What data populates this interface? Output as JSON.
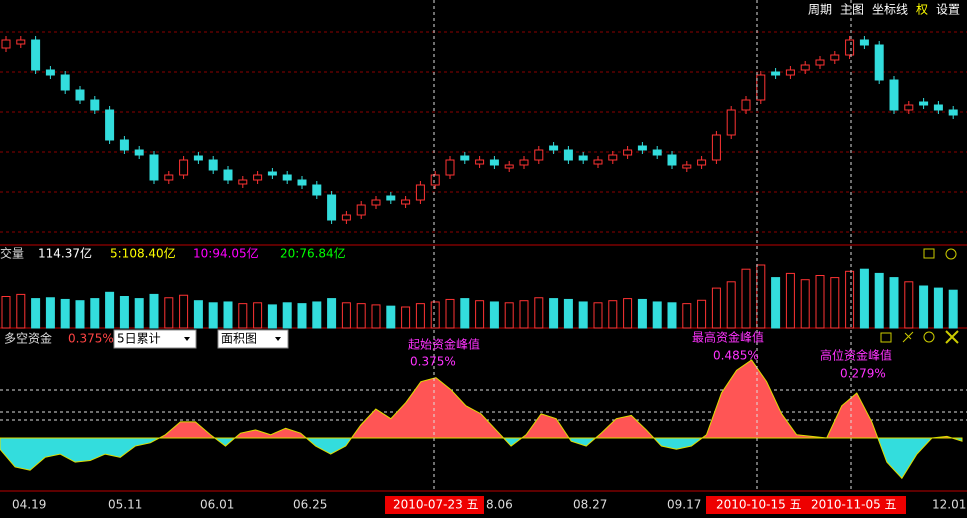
{
  "toolbar": {
    "items": [
      "周期",
      "主图",
      "坐标线",
      "权",
      "设置"
    ]
  },
  "candles": {
    "open": [
      96,
      98,
      100,
      85,
      82.5,
      75,
      70,
      65,
      50,
      45,
      42.5,
      30,
      32.5,
      42,
      40,
      35,
      28,
      30,
      34,
      32.5,
      30,
      27.5,
      22.5,
      10,
      12.5,
      17.5,
      22,
      18,
      20,
      27.5,
      32.5,
      42,
      38,
      40,
      36,
      37.5,
      40,
      47,
      45,
      42,
      38,
      40,
      42.5,
      47,
      45,
      42.5,
      36,
      37.5,
      40,
      52.5,
      65,
      70,
      84,
      82.5,
      85,
      87.5,
      90,
      92.5,
      100,
      97.5,
      80,
      65,
      69,
      67.5,
      65
    ],
    "close": [
      100,
      100,
      85,
      82.5,
      75,
      70,
      65,
      50,
      45,
      42.5,
      30,
      32.5,
      40,
      40,
      35,
      30,
      30,
      32.5,
      32.5,
      30,
      27.5,
      22.5,
      10,
      12.5,
      17.5,
      20,
      20,
      20,
      27.5,
      32.5,
      40,
      40,
      40,
      37.5,
      37.5,
      40,
      45,
      45,
      40,
      40,
      40,
      42.5,
      45,
      45,
      42.5,
      37.5,
      37.5,
      40,
      52.5,
      65,
      70,
      82.5,
      82.5,
      85,
      87.5,
      90,
      92.5,
      100,
      97.5,
      80,
      65,
      67.5,
      67.5,
      65,
      62.5
    ],
    "high": [
      102,
      102,
      102,
      87,
      84.5,
      77,
      72,
      67,
      52,
      47,
      44.5,
      34.5,
      42,
      44,
      42,
      37,
      32,
      34.5,
      36,
      34.5,
      32,
      29.5,
      24.5,
      14.5,
      19.5,
      22,
      24,
      22,
      29.5,
      34.5,
      42,
      44,
      42,
      42,
      39.5,
      42,
      47,
      49,
      47,
      44,
      42,
      44.5,
      47,
      49,
      47,
      44.5,
      39.5,
      42,
      54.5,
      67,
      72,
      84.5,
      86,
      87,
      89.5,
      92,
      94.5,
      102,
      102,
      99.5,
      82,
      69.5,
      71,
      69.5,
      67
    ],
    "low": [
      94,
      96,
      83,
      80.5,
      73,
      68,
      63,
      48,
      43,
      40.5,
      28,
      28,
      30.5,
      38,
      33,
      28,
      26,
      28,
      30.5,
      28,
      25.5,
      20.5,
      8,
      8,
      10.5,
      15.5,
      18,
      16,
      18,
      25.5,
      30.5,
      38,
      36,
      35.5,
      34,
      35.5,
      38,
      43,
      38,
      38,
      36,
      38,
      40.5,
      43,
      40.5,
      35.5,
      34,
      35.5,
      38,
      50.5,
      63,
      68,
      80.5,
      80.5,
      83,
      85.5,
      88,
      90.5,
      95.5,
      78,
      63,
      63,
      65.5,
      63,
      60.5
    ]
  },
  "volume": {
    "label": "交量",
    "total": "114.37亿",
    "ma5": "5:108.40亿",
    "ma10": "10:94.05亿",
    "ma20": "20:76.84亿",
    "values": [
      75,
      80,
      70,
      72,
      68,
      65,
      70,
      85,
      75,
      70,
      80,
      72,
      78,
      65,
      60,
      62,
      58,
      60,
      55,
      60,
      58,
      62,
      70,
      60,
      58,
      55,
      52,
      50,
      58,
      62,
      68,
      70,
      65,
      62,
      60,
      65,
      72,
      70,
      68,
      62,
      60,
      65,
      70,
      68,
      62,
      60,
      58,
      66,
      95,
      110,
      140,
      150,
      120,
      130,
      115,
      125,
      120,
      135,
      140,
      130,
      120,
      110,
      100,
      95,
      90
    ]
  },
  "fund": {
    "label": "多空资金",
    "current": "0.375%",
    "period_select": "5日累计",
    "style_select": "面积图",
    "values": [
      -0.07,
      -0.18,
      -0.2,
      -0.12,
      -0.1,
      -0.15,
      -0.14,
      -0.1,
      -0.12,
      -0.05,
      -0.03,
      0.02,
      0.1,
      0.1,
      0.02,
      -0.05,
      0.03,
      0.05,
      0.02,
      0.06,
      0.03,
      -0.05,
      -0.1,
      -0.05,
      0.08,
      0.18,
      0.12,
      0.22,
      0.35,
      0.375,
      0.3,
      0.2,
      0.15,
      0.05,
      -0.05,
      0.02,
      0.15,
      0.12,
      -0.02,
      -0.05,
      0.03,
      0.12,
      0.14,
      0.05,
      -0.05,
      -0.07,
      -0.05,
      0.02,
      0.28,
      0.42,
      0.485,
      0.35,
      0.15,
      0.02,
      0.01,
      0,
      0.2,
      0.279,
      0.1,
      -0.15,
      -0.25,
      -0.1,
      0,
      0.01,
      -0.02
    ],
    "annotations": [
      {
        "title": "起始资金峰值",
        "value": "0.375%"
      },
      {
        "title": "最高资金峰值",
        "value": "0.485%"
      },
      {
        "title": "高位资金峰值",
        "value": "0.279%"
      }
    ]
  },
  "dates": [
    "04.19",
    "05.11",
    "06.01",
    "06.25",
    "8.06",
    "08.27",
    "09.17",
    "12.01"
  ],
  "highlighted_dates": [
    "2010-07-23 五",
    "2010-10-15 五",
    "2010-11-05 五"
  ]
}
